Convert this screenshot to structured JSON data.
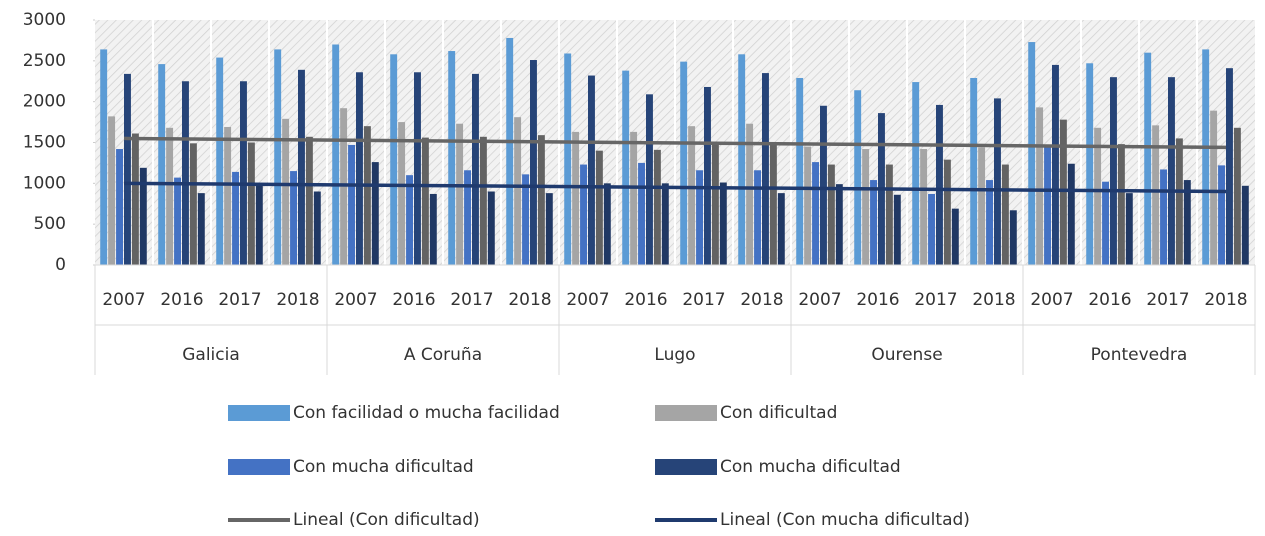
{
  "chart_data": {
    "type": "bar",
    "categories": [
      "2007",
      "2016",
      "2017",
      "2018",
      "2007",
      "2016",
      "2017",
      "2018",
      "2007",
      "2016",
      "2017",
      "2018",
      "2007",
      "2016",
      "2017",
      "2018",
      "2007",
      "2016",
      "2017",
      "2018"
    ],
    "groups": [
      "Galicia",
      "A Coruña",
      "Lugo",
      "Ourense",
      "Pontevedra"
    ],
    "ylim": [
      0,
      3000
    ],
    "yticks": [
      0,
      500,
      1000,
      1500,
      2000,
      2500,
      3000
    ],
    "series": [
      {
        "name": "Con facilidad o mucha facilidad",
        "color": "#5b9bd5",
        "values": [
          2640,
          2460,
          2540,
          2640,
          2700,
          2580,
          2620,
          2780,
          2590,
          2380,
          2490,
          2580,
          2290,
          2140,
          2240,
          2290,
          2730,
          2470,
          2600,
          2640
        ]
      },
      {
        "name": "Con dificultad",
        "color": "#a5a5a5",
        "values": [
          1820,
          1680,
          1690,
          1790,
          1920,
          1750,
          1730,
          1810,
          1630,
          1630,
          1700,
          1730,
          1450,
          1420,
          1420,
          1440,
          1930,
          1680,
          1710,
          1890
        ]
      },
      {
        "name": "Con mucha dificultad",
        "color": "#4472c4",
        "values": [
          1420,
          1070,
          1140,
          1150,
          1470,
          1100,
          1160,
          1110,
          1230,
          1250,
          1160,
          1160,
          1260,
          1040,
          870,
          1040,
          1440,
          1020,
          1170,
          1220
        ]
      },
      {
        "name": "Con mucha dificultad",
        "color": "#264478",
        "values": [
          2340,
          2250,
          2250,
          2390,
          2360,
          2360,
          2340,
          2510,
          2320,
          2090,
          2180,
          2350,
          1950,
          1860,
          1960,
          2040,
          2450,
          2300,
          2300,
          2410
        ]
      },
      {
        "color": "#636363",
        "values": [
          1610,
          1490,
          1500,
          1570,
          1700,
          1560,
          1570,
          1590,
          1400,
          1410,
          1500,
          1480,
          1230,
          1230,
          1290,
          1230,
          1780,
          1480,
          1550,
          1680
        ]
      },
      {
        "color": "#203864",
        "values": [
          1190,
          880,
          1000,
          900,
          1260,
          870,
          900,
          880,
          1000,
          1000,
          1010,
          880,
          990,
          860,
          690,
          670,
          1240,
          880,
          1040,
          970
        ]
      }
    ],
    "trendlines": [
      {
        "name": "Lineal (Con dificultad)",
        "color": "#666666",
        "values": [
          1550,
          1440
        ]
      },
      {
        "name": "Lineal (Con mucha dificultad)",
        "color": "#1f3a6e",
        "values": [
          1000,
          900
        ]
      }
    ]
  }
}
